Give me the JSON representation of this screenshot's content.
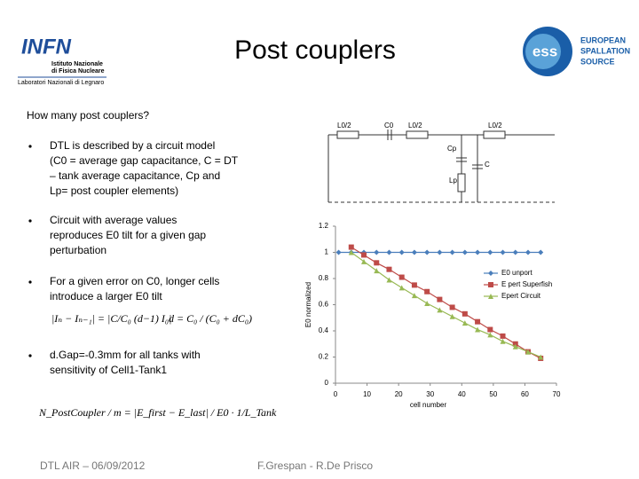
{
  "header": {
    "title": "Post couplers",
    "left_logo": {
      "name": "INFN",
      "line1": "Istituto Nazionale",
      "line2": "di Fisica Nucleare",
      "lab": "Laboratori Nazionali di Legnaro"
    },
    "right_logo": {
      "mark": "ess",
      "line1": "EUROPEAN",
      "line2": "SPALLATION",
      "line3": "SOURCE"
    }
  },
  "question": "How many post couplers?",
  "bullets": [
    [
      "DTL is described by a circuit model",
      "(C0 = average gap capacitance, C = DT",
      "– tank average capacitance, Cp and",
      "Lp= post coupler elements)"
    ],
    [
      "Circuit with average values",
      "reproduces E0 tilt for a given gap",
      "perturbation"
    ],
    [
      "For a given error on C0, longer cells",
      "introduce a larger E0 tilt"
    ],
    [
      "d.Gap=-0.3mm for all tanks with",
      "sensitivity of Cell1-Tank1"
    ]
  ],
  "equations": [
    "|Iₙ − Iₙ₋₁| = |C/C₀ (d−1) I₀|",
    "d = C₀ / (C₀ + dC₀)",
    "N_PostCoupler / m = |E_first − E_last| / E0 · 1/L_Tank"
  ],
  "circuit": {
    "labels": [
      "L0/2",
      "C0",
      "L0/2",
      "L0/2",
      "Cp",
      "Lp",
      "C"
    ]
  },
  "footer": {
    "left": "DTL AIR – 06/09/2012",
    "right": "F.Grespan - R.De Prisco"
  },
  "chart_data": {
    "type": "line",
    "xlabel": "cell number",
    "ylabel": "E0 normalized",
    "x": [
      1,
      5,
      9,
      13,
      17,
      21,
      25,
      29,
      33,
      37,
      41,
      45,
      49,
      53,
      57,
      61,
      65
    ],
    "series": [
      {
        "name": "E0 unport",
        "color": "#4a7ebb",
        "marker": "diamond",
        "values": [
          1,
          1,
          1,
          1,
          1,
          1,
          1,
          1,
          1,
          1,
          1,
          1,
          1,
          1,
          1,
          1,
          1
        ]
      },
      {
        "name": "E pert Superfish",
        "color": "#be4b48",
        "marker": "square",
        "values": [
          null,
          1.04,
          0.98,
          0.92,
          0.87,
          0.81,
          0.75,
          0.7,
          0.64,
          0.58,
          0.53,
          0.47,
          0.41,
          0.36,
          0.3,
          0.24,
          0.19
        ]
      },
      {
        "name": "Epert Circuit",
        "color": "#98b954",
        "marker": "triangle",
        "values": [
          null,
          1.0,
          0.93,
          0.86,
          0.79,
          0.73,
          0.67,
          0.61,
          0.56,
          0.51,
          0.46,
          0.41,
          0.37,
          0.32,
          0.28,
          0.24,
          0.2
        ]
      }
    ],
    "xlim": [
      0,
      70
    ],
    "xticks": [
      0,
      10,
      20,
      30,
      40,
      50,
      60,
      70
    ],
    "ylim": [
      0,
      1.2
    ],
    "yticks": [
      0,
      0.2,
      0.4,
      0.6,
      0.8,
      1,
      1.2
    ],
    "legend": "right"
  }
}
